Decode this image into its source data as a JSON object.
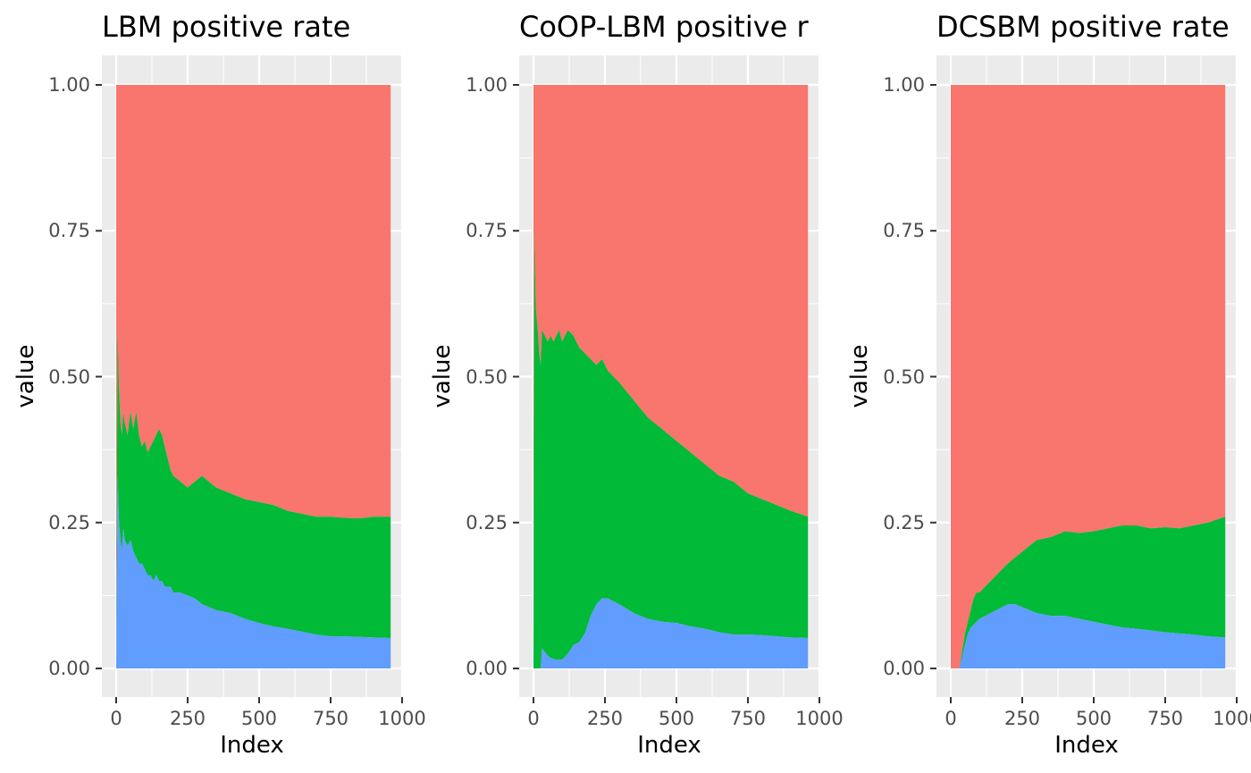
{
  "chart_data": [
    {
      "type": "area",
      "title": "LBM positive rate",
      "xlabel": "Index",
      "ylabel": "value",
      "xlim": [
        0,
        1000
      ],
      "ylim": [
        0,
        1
      ],
      "x_ticks": [
        "0",
        "250",
        "500",
        "750",
        "1000"
      ],
      "y_ticks": [
        "0.00",
        "0.25",
        "0.50",
        "0.75",
        "1.00"
      ],
      "stacked": true,
      "grid": true,
      "legend": "none",
      "colors": {
        "background": "#EBEBEB",
        "grid": "#FFFFFF",
        "bottom": "#619CFF",
        "middle": "#00BA38",
        "top": "#F8766D"
      },
      "x": [
        0,
        5,
        10,
        15,
        20,
        25,
        30,
        40,
        50,
        60,
        70,
        80,
        90,
        100,
        110,
        120,
        130,
        140,
        150,
        160,
        170,
        180,
        190,
        200,
        225,
        250,
        275,
        300,
        350,
        400,
        450,
        500,
        550,
        600,
        650,
        700,
        750,
        800,
        850,
        900,
        960
      ],
      "series": [
        {
          "values": [
            0.0,
            0.33,
            0.25,
            0.22,
            0.2,
            0.24,
            0.22,
            0.21,
            0.22,
            0.2,
            0.19,
            0.18,
            0.18,
            0.17,
            0.16,
            0.16,
            0.15,
            0.16,
            0.15,
            0.15,
            0.14,
            0.14,
            0.14,
            0.13,
            0.13,
            0.125,
            0.12,
            0.11,
            0.1,
            0.095,
            0.085,
            0.078,
            0.072,
            0.068,
            0.063,
            0.058,
            0.055,
            0.055,
            0.054,
            0.053,
            0.052
          ]
        },
        {
          "values": [
            0.0,
            0.58,
            0.48,
            0.42,
            0.4,
            0.44,
            0.42,
            0.4,
            0.44,
            0.41,
            0.44,
            0.4,
            0.38,
            0.39,
            0.37,
            0.38,
            0.39,
            0.4,
            0.41,
            0.4,
            0.38,
            0.36,
            0.34,
            0.33,
            0.32,
            0.31,
            0.32,
            0.33,
            0.31,
            0.3,
            0.29,
            0.285,
            0.28,
            0.27,
            0.265,
            0.26,
            0.26,
            0.258,
            0.257,
            0.26,
            0.26
          ]
        },
        {
          "values": [
            1,
            1,
            1,
            1,
            1,
            1,
            1,
            1,
            1,
            1,
            1,
            1,
            1,
            1,
            1,
            1,
            1,
            1,
            1,
            1,
            1,
            1,
            1,
            1,
            1,
            1,
            1,
            1,
            1,
            1,
            1,
            1,
            1,
            1,
            1,
            1,
            1,
            1,
            1,
            1,
            1
          ]
        }
      ]
    },
    {
      "type": "area",
      "title": "CoOP-LBM positive r",
      "xlabel": "Index",
      "ylabel": "value",
      "xlim": [
        0,
        1000
      ],
      "ylim": [
        0,
        1
      ],
      "x_ticks": [
        "0",
        "250",
        "500",
        "750",
        "1000"
      ],
      "y_ticks": [
        "0.00",
        "0.25",
        "0.50",
        "0.75",
        "1.00"
      ],
      "stacked": true,
      "grid": true,
      "legend": "none",
      "colors": {
        "background": "#EBEBEB",
        "grid": "#FFFFFF",
        "bottom": "#619CFF",
        "middle": "#00BA38",
        "top": "#F8766D"
      },
      "x": [
        0,
        3,
        8,
        15,
        20,
        25,
        30,
        40,
        50,
        60,
        70,
        80,
        90,
        100,
        120,
        140,
        160,
        180,
        200,
        220,
        240,
        260,
        300,
        350,
        400,
        450,
        500,
        550,
        600,
        650,
        700,
        750,
        800,
        850,
        900,
        960
      ],
      "series": [
        {
          "values": [
            0.0,
            0.0,
            0.0,
            0.0,
            0.0,
            0.0,
            0.035,
            0.028,
            0.022,
            0.018,
            0.016,
            0.015,
            0.015,
            0.015,
            0.025,
            0.04,
            0.045,
            0.06,
            0.09,
            0.11,
            0.12,
            0.12,
            0.11,
            0.095,
            0.085,
            0.08,
            0.078,
            0.072,
            0.068,
            0.062,
            0.058,
            0.058,
            0.057,
            0.055,
            0.053,
            0.052
          ]
        },
        {
          "values": [
            0.0,
            0.75,
            0.62,
            0.58,
            0.54,
            0.52,
            0.58,
            0.57,
            0.56,
            0.57,
            0.56,
            0.57,
            0.58,
            0.56,
            0.58,
            0.57,
            0.55,
            0.54,
            0.53,
            0.52,
            0.53,
            0.51,
            0.49,
            0.46,
            0.43,
            0.41,
            0.39,
            0.37,
            0.35,
            0.33,
            0.32,
            0.3,
            0.29,
            0.28,
            0.27,
            0.26
          ]
        },
        {
          "values": [
            1,
            1,
            1,
            1,
            1,
            1,
            1,
            1,
            1,
            1,
            1,
            1,
            1,
            1,
            1,
            1,
            1,
            1,
            1,
            1,
            1,
            1,
            1,
            1,
            1,
            1,
            1,
            1,
            1,
            1,
            1,
            1,
            1,
            1,
            1,
            1
          ]
        }
      ]
    },
    {
      "type": "area",
      "title": "DCSBM positive rate",
      "xlabel": "Index",
      "ylabel": "value",
      "xlim": [
        0,
        1000
      ],
      "ylim": [
        0,
        1
      ],
      "x_ticks": [
        "0",
        "250",
        "500",
        "750",
        "1000"
      ],
      "y_ticks": [
        "0.00",
        "0.25",
        "0.50",
        "0.75",
        "1.00"
      ],
      "stacked": true,
      "grid": true,
      "legend": "none",
      "colors": {
        "background": "#EBEBEB",
        "grid": "#FFFFFF",
        "bottom": "#619CFF",
        "middle": "#00BA38",
        "top": "#F8766D"
      },
      "x": [
        0,
        30,
        40,
        50,
        60,
        70,
        80,
        90,
        100,
        120,
        140,
        160,
        180,
        200,
        225,
        250,
        275,
        300,
        350,
        400,
        450,
        500,
        550,
        600,
        650,
        700,
        750,
        800,
        850,
        900,
        960
      ],
      "series": [
        {
          "values": [
            0.0,
            0.0,
            0.02,
            0.04,
            0.06,
            0.07,
            0.075,
            0.08,
            0.085,
            0.09,
            0.095,
            0.1,
            0.105,
            0.11,
            0.11,
            0.105,
            0.1,
            0.095,
            0.09,
            0.09,
            0.085,
            0.08,
            0.075,
            0.07,
            0.068,
            0.065,
            0.062,
            0.06,
            0.058,
            0.055,
            0.053
          ]
        },
        {
          "values": [
            0.0,
            0.0,
            0.03,
            0.06,
            0.08,
            0.1,
            0.12,
            0.13,
            0.13,
            0.14,
            0.15,
            0.16,
            0.17,
            0.18,
            0.19,
            0.2,
            0.21,
            0.22,
            0.225,
            0.235,
            0.232,
            0.235,
            0.24,
            0.245,
            0.245,
            0.24,
            0.242,
            0.24,
            0.245,
            0.25,
            0.26
          ]
        },
        {
          "values": [
            1,
            1,
            1,
            1,
            1,
            1,
            1,
            1,
            1,
            1,
            1,
            1,
            1,
            1,
            1,
            1,
            1,
            1,
            1,
            1,
            1,
            1,
            1,
            1,
            1,
            1,
            1,
            1,
            1,
            1,
            1
          ]
        }
      ]
    }
  ]
}
